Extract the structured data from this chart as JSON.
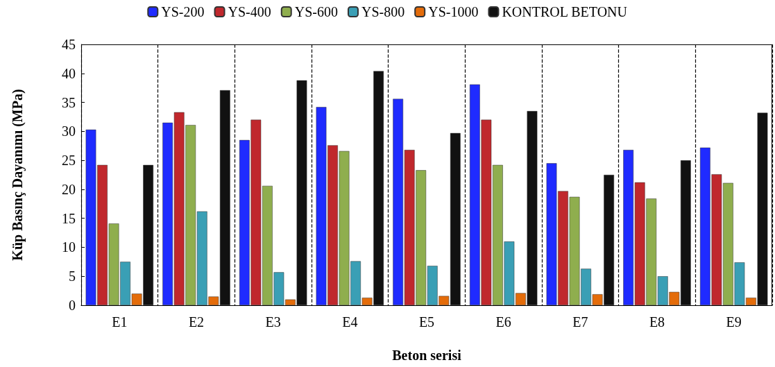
{
  "chart_data": {
    "type": "bar",
    "xlabel": "Beton serisi",
    "ylabel": "Küp Basınç Dayanımı (MPa)",
    "categories": [
      "E1",
      "E2",
      "E3",
      "E4",
      "E5",
      "E6",
      "E7",
      "E8",
      "E9"
    ],
    "series": [
      {
        "name": "YS-200",
        "color": "#1f2bff",
        "values": [
          30.3,
          31.5,
          28.5,
          34.2,
          35.6,
          38.1,
          24.5,
          26.8,
          27.2
        ]
      },
      {
        "name": "YS-400",
        "color": "#c0282d",
        "values": [
          24.2,
          33.3,
          32.0,
          27.6,
          26.8,
          32.0,
          19.7,
          21.2,
          22.6
        ]
      },
      {
        "name": "YS-600",
        "color": "#8fae4e",
        "values": [
          14.1,
          31.1,
          20.6,
          26.6,
          23.3,
          24.2,
          18.7,
          18.4,
          21.1
        ]
      },
      {
        "name": "YS-800",
        "color": "#3a9fb5",
        "values": [
          7.5,
          16.2,
          5.7,
          7.6,
          6.8,
          11.0,
          6.3,
          5.0,
          7.4
        ]
      },
      {
        "name": "YS-1000",
        "color": "#e46c0a",
        "values": [
          2.0,
          1.5,
          1.0,
          1.3,
          1.6,
          2.1,
          1.9,
          2.3,
          1.3
        ]
      },
      {
        "name": "KONTROL BETONU",
        "color": "#111111",
        "values": [
          24.2,
          37.1,
          38.8,
          40.4,
          29.7,
          33.5,
          22.5,
          25.0,
          33.2
        ]
      }
    ],
    "ylim": [
      0,
      45
    ],
    "yticks": [
      0,
      5,
      10,
      15,
      20,
      25,
      30,
      35,
      40,
      45
    ],
    "grid": "x",
    "legend": "top"
  }
}
